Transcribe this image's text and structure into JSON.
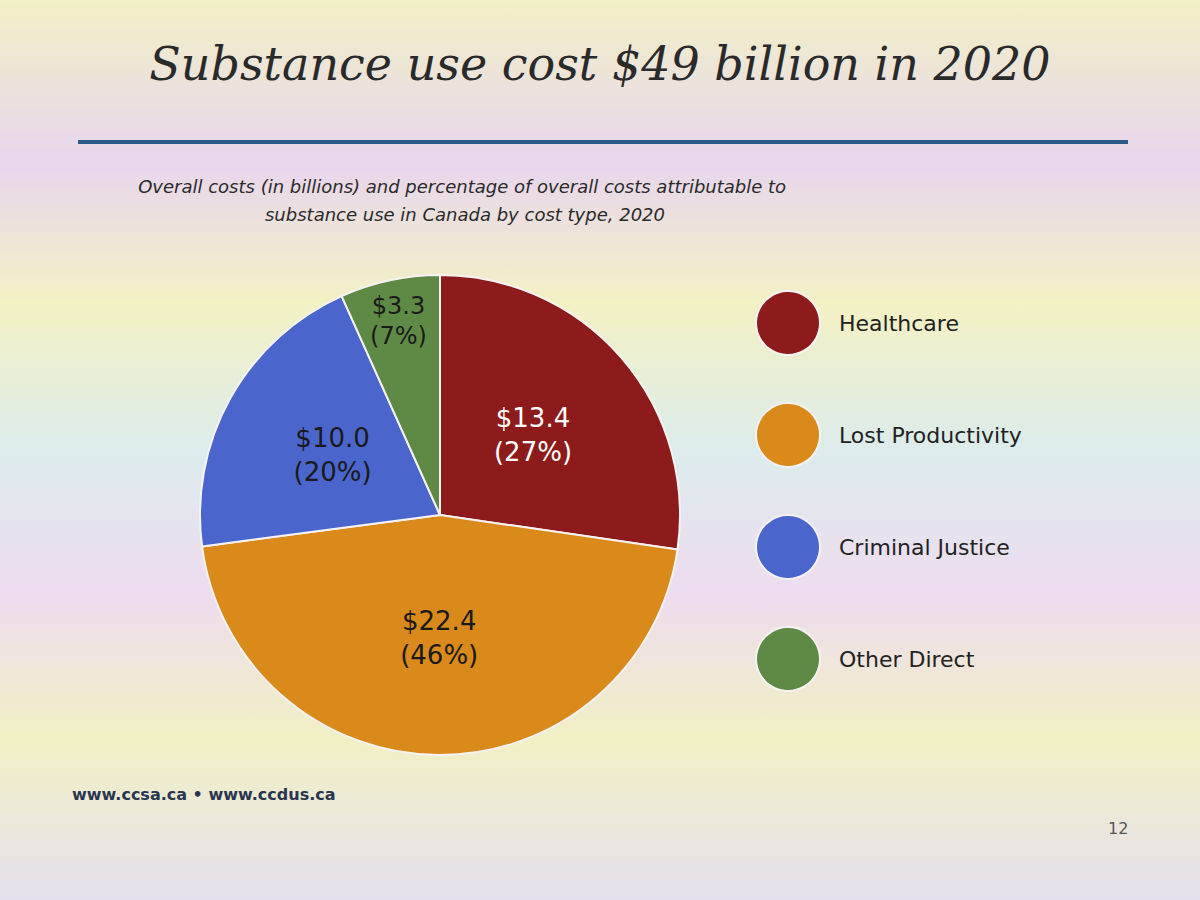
{
  "chart_data": {
    "type": "pie",
    "title": "Substance use cost $49 billion in 2020",
    "subtitle": "Overall costs (in billions) and percentage of overall costs attributable to substance use in Canada by cost type, 2020",
    "categories": [
      "Healthcare",
      "Lost Productivity",
      "Criminal Justice",
      "Other Direct"
    ],
    "values": [
      13.4,
      22.4,
      10.0,
      3.3
    ],
    "value_labels": [
      "$13.4\n(27%)",
      "$22.4\n(46%)",
      "$10.0\n(20%)",
      "$3.3\n(7%)"
    ],
    "colors": [
      "#8e1b1b",
      "#d98a1a",
      "#4a66cc",
      "#5f8a45"
    ],
    "data_labels": true,
    "legend": "right",
    "footer": "www.ccsa.ca • www.ccdus.ca",
    "page_number": "12"
  }
}
